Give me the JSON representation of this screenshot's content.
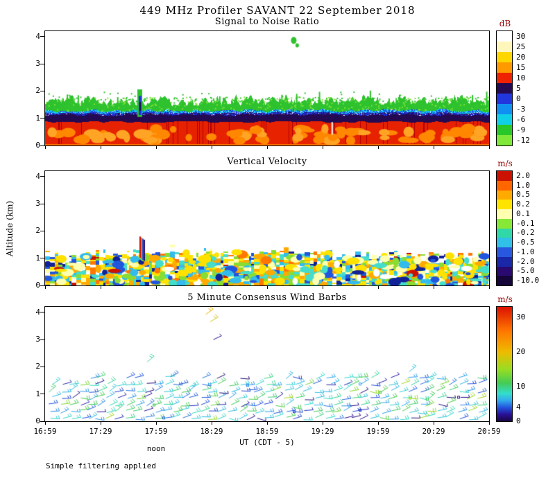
{
  "page": {
    "title": "449 MHz Profiler SAVANT 22 September 2018",
    "ylabel": "Altitude (km)",
    "xlabel": "UT (CDT - 5)",
    "noon_label": "noon",
    "footer_note": "Simple filtering applied",
    "background": "#ffffff",
    "unit_label_color": "#990000"
  },
  "x_axis": {
    "ticks": [
      "16:59",
      "17:29",
      "17:59",
      "18:29",
      "18:59",
      "19:29",
      "19:59",
      "20:29",
      "20:59"
    ],
    "start": "16:59",
    "end": "20:59",
    "interval_minutes": 30
  },
  "y_axis": {
    "ticks": [
      4,
      3,
      2,
      1,
      0
    ],
    "label": "Altitude (km)",
    "max_km": 4.2
  },
  "chart_data": [
    {
      "type": "heatmap",
      "title": "Signal to Noise Ratio",
      "ylabel": "Altitude (km)",
      "ylim": [
        0,
        4
      ],
      "x_range": [
        "16:59",
        "20:59"
      ],
      "colorbar": {
        "unit": "dB",
        "ticks": [
          "30",
          "25",
          "20",
          "15",
          "10",
          "5",
          "0",
          "-3",
          "-6",
          "-9",
          "-12"
        ],
        "colors": [
          "#ffffff",
          "#fff6bb",
          "#ffd700",
          "#ff9900",
          "#ee2200",
          "#240a52",
          "#2236e0",
          "#1090f0",
          "#10d0e8",
          "#28c828",
          "#80e838"
        ]
      },
      "sim": {
        "spike_u": 0.2125,
        "top_blob_u": 0.56,
        "white_notch_u": 0.645,
        "bands_km": {
          "orange_base": 0.05,
          "red_top": 0.82,
          "navy_top": 1.07,
          "cyan_top": 1.21,
          "green_top_min": 1.4,
          "green_top_max": 1.92
        },
        "colors": {
          "green": "#2ec22e",
          "green_light": "#7fe23c",
          "cyan": "#10c8f0",
          "blue": "#2236e0",
          "navy": "#240a52",
          "red": "#e62200",
          "dark_red": "#b00000",
          "orange_base": "#ff7700",
          "orange_blob": "#ff8800",
          "orange_blob2": "#ffa424",
          "white": "#ffffff"
        }
      }
    },
    {
      "type": "heatmap",
      "title": "Vertical Velocity",
      "ylabel": "Altitude (km)",
      "ylim": [
        0,
        4
      ],
      "x_range": [
        "16:59",
        "20:59"
      ],
      "colorbar": {
        "unit": "m/s",
        "ticks": [
          "2.0",
          "1.0",
          "0.5",
          "0.2",
          "0.1",
          "-0.1",
          "-0.2",
          "-0.5",
          "-1.0",
          "-2.0",
          "-5.0",
          "-10.0"
        ],
        "colors": [
          "#cc1100",
          "#ff6600",
          "#ffaa00",
          "#ffe400",
          "#ffffb0",
          "#88e838",
          "#30d8a8",
          "#30c0e8",
          "#2858e0",
          "#1828a8",
          "#2a0a70",
          "#150538"
        ]
      },
      "sim": {
        "streak_u": 0.2125,
        "streak_colors": [
          "#cc1100",
          "#ff7700",
          "#2255dd",
          "#221177"
        ],
        "palette": [
          {
            "c": "#ffe200",
            "w": 0.2
          },
          {
            "c": "#ffffb0",
            "w": 0.12
          },
          {
            "c": "#ffaa00",
            "w": 0.1
          },
          {
            "c": "#ff7700",
            "w": 0.05
          },
          {
            "c": "#88dd33",
            "w": 0.1
          },
          {
            "c": "#44ddcc",
            "w": 0.14
          },
          {
            "c": "#33bbee",
            "w": 0.1
          },
          {
            "c": "#2255dd",
            "w": 0.07
          },
          {
            "c": "#112299",
            "w": 0.04
          },
          {
            "c": "#cc1100",
            "w": 0.02
          },
          {
            "c": "#ffffff",
            "w": 0.16
          }
        ]
      }
    },
    {
      "type": "wind_barbs",
      "title": "5 Minute Consensus Wind Barbs",
      "ylabel": "Altitude (km)",
      "ylim": [
        0,
        4
      ],
      "x_range": [
        "16:59",
        "20:59"
      ],
      "colorbar": {
        "unit": "m/s",
        "ticks": [
          "30",
          "20",
          "10",
          "4",
          "0"
        ],
        "tick_values": [
          30,
          20,
          10,
          4,
          0
        ],
        "scale_max": 33,
        "stops": {
          "values": [
            0,
            2,
            4,
            6,
            8,
            11,
            15,
            20,
            26,
            33
          ],
          "colors": [
            "#1a0544",
            "#2a1199",
            "#2255dd",
            "#33aaee",
            "#33ddcc",
            "#44cc55",
            "#99dd22",
            "#eebb00",
            "#ff7700",
            "#dd1100"
          ]
        }
      },
      "sim": {
        "features": [
          {
            "u": 0.362,
            "alt_km": 3.93,
            "speed_ms": 21,
            "angle_deg": 35
          },
          {
            "u": 0.372,
            "alt_km": 3.66,
            "speed_ms": 18,
            "angle_deg": 30
          },
          {
            "u": 0.379,
            "alt_km": 3.0,
            "speed_ms": 2,
            "angle_deg": 25
          },
          {
            "u": 0.23,
            "alt_km": 2.18,
            "speed_ms": 9,
            "angle_deg": 40
          }
        ]
      }
    }
  ]
}
